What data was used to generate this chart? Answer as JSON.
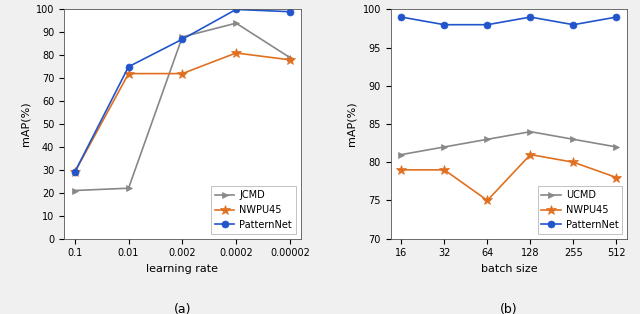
{
  "plot_a": {
    "title": "(a)",
    "xlabel": "learning rate",
    "ylabel": "mAP(%)",
    "x_labels": [
      "0.1",
      "0.01",
      "0.002",
      "0.0002",
      "0.00002"
    ],
    "series": [
      {
        "label": "JCMD",
        "color": "#888888",
        "marker": ">",
        "linewidth": 1.2,
        "markersize": 5,
        "y": [
          21,
          22,
          88,
          94,
          79
        ]
      },
      {
        "label": "NWPU45",
        "color": "#e07020",
        "marker": "*",
        "linewidth": 1.2,
        "markersize": 7,
        "y": [
          29,
          72,
          72,
          81,
          78
        ]
      },
      {
        "label": "PatternNet",
        "color": "#2255cc",
        "marker": "o",
        "linewidth": 1.2,
        "markersize": 5,
        "y": [
          29,
          75,
          87,
          100,
          99
        ]
      }
    ],
    "ylim": [
      0,
      100
    ],
    "yticks": [
      0,
      10,
      20,
      30,
      40,
      50,
      60,
      70,
      80,
      90,
      100
    ],
    "legend_loc": "lower right"
  },
  "plot_b": {
    "title": "(b)",
    "xlabel": "batch size",
    "ylabel": "mAP(%)",
    "x_labels": [
      "16",
      "32",
      "64",
      "128",
      "255",
      "512"
    ],
    "series": [
      {
        "label": "UCMD",
        "color": "#888888",
        "marker": ">",
        "linewidth": 1.2,
        "markersize": 5,
        "y": [
          81,
          82,
          83,
          84,
          83,
          82
        ]
      },
      {
        "label": "NWPU45",
        "color": "#e07020",
        "marker": "*",
        "linewidth": 1.2,
        "markersize": 7,
        "y": [
          79,
          79,
          75,
          81,
          80,
          78
        ]
      },
      {
        "label": "PatternNet",
        "color": "#2255cc",
        "marker": "o",
        "linewidth": 1.2,
        "markersize": 5,
        "y": [
          99,
          98,
          98,
          99,
          98,
          99
        ]
      }
    ],
    "ylim": [
      70,
      100
    ],
    "yticks": [
      70,
      75,
      80,
      85,
      90,
      95,
      100
    ],
    "legend_loc": "lower right"
  },
  "bg_color": "#f0f0f0",
  "plot_bg": "#ffffff",
  "tick_fontsize": 7,
  "label_fontsize": 8,
  "legend_fontsize": 7,
  "title_fontsize": 9
}
